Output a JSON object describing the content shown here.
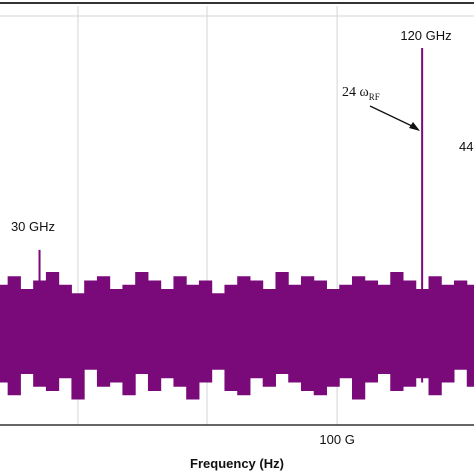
{
  "chart_data": {
    "type": "spectrum",
    "x_label": "Frequency (Hz)",
    "xlim": [
      20.7,
      132.2
    ],
    "ylim": [
      0,
      100
    ],
    "xticks": [
      {
        "value": 100,
        "label": "100 G"
      }
    ],
    "color": "#7a0a7a",
    "noise": {
      "x": [
        21,
        24,
        27,
        30,
        33,
        36,
        39,
        42,
        45,
        48,
        51,
        54,
        57,
        60,
        63,
        66,
        69,
        72,
        75,
        78,
        81,
        84,
        87,
        90,
        93,
        96,
        99,
        102,
        105,
        108,
        111,
        114,
        117,
        120,
        123,
        126,
        129,
        132
      ],
      "top": [
        33,
        35,
        32,
        34,
        36,
        33,
        31,
        34,
        35,
        32,
        33,
        36,
        34,
        32,
        35,
        33,
        34,
        31,
        33,
        35,
        34,
        32,
        36,
        33,
        35,
        34,
        32,
        33,
        35,
        34,
        33,
        36,
        34,
        32,
        35,
        33,
        34,
        33
      ],
      "bottom": [
        10,
        7,
        12,
        9,
        8,
        11,
        6,
        13,
        9,
        10,
        7,
        12,
        8,
        11,
        9,
        6,
        10,
        13,
        8,
        7,
        11,
        9,
        12,
        10,
        8,
        7,
        9,
        11,
        6,
        10,
        12,
        8,
        9,
        11,
        7,
        10,
        13,
        9
      ]
    },
    "peaks": {
      "x": [
        30,
        120
      ],
      "values": [
        41.2,
        88.7
      ],
      "labels": [
        "30 GHz",
        "120 GHz"
      ]
    },
    "annotations": [
      {
        "text": "24 ω",
        "sub": "RF"
      },
      {
        "text": "44"
      }
    ]
  }
}
